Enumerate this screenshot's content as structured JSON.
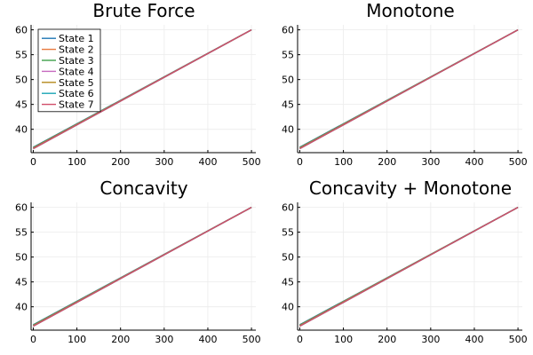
{
  "colors": {
    "background": "#ffffff",
    "grid": "#ececec",
    "axis": "#000000",
    "series": [
      "#1f77b4",
      "#e8793e",
      "#3ea04a",
      "#c76bc0",
      "#b5891c",
      "#1aa5b5",
      "#d14d6a"
    ]
  },
  "chart_data": [
    {
      "type": "line",
      "title": "Brute Force",
      "xlabel": "",
      "ylabel": "",
      "xlim": [
        -5,
        510
      ],
      "ylim": [
        35.3,
        61
      ],
      "xticks": [
        0,
        100,
        200,
        300,
        400,
        500
      ],
      "yticks": [
        40,
        45,
        50,
        55,
        60
      ],
      "grid": true,
      "legend": "top-left",
      "series": [
        {
          "name": "State 1",
          "x": [
            0,
            500
          ],
          "y": [
            36.4,
            60.0
          ]
        },
        {
          "name": "State 2",
          "x": [
            0,
            500
          ],
          "y": [
            36.3,
            60.0
          ]
        },
        {
          "name": "State 3",
          "x": [
            0,
            500
          ],
          "y": [
            36.3,
            60.0
          ]
        },
        {
          "name": "State 4",
          "x": [
            0,
            500
          ],
          "y": [
            36.2,
            60.0
          ]
        },
        {
          "name": "State 5",
          "x": [
            0,
            500
          ],
          "y": [
            36.2,
            60.0
          ]
        },
        {
          "name": "State 6",
          "x": [
            0,
            500
          ],
          "y": [
            36.1,
            60.0
          ]
        },
        {
          "name": "State 7",
          "x": [
            0,
            500
          ],
          "y": [
            36.1,
            60.0
          ]
        }
      ]
    },
    {
      "type": "line",
      "title": "Monotone",
      "xlabel": "",
      "ylabel": "",
      "xlim": [
        -5,
        510
      ],
      "ylim": [
        35.3,
        61
      ],
      "xticks": [
        0,
        100,
        200,
        300,
        400,
        500
      ],
      "yticks": [
        40,
        45,
        50,
        55,
        60
      ],
      "grid": true,
      "series": [
        {
          "x": [
            0,
            500
          ],
          "y": [
            36.4,
            60.0
          ]
        },
        {
          "x": [
            0,
            500
          ],
          "y": [
            36.3,
            60.0
          ]
        },
        {
          "x": [
            0,
            500
          ],
          "y": [
            36.3,
            60.0
          ]
        },
        {
          "x": [
            0,
            500
          ],
          "y": [
            36.2,
            60.0
          ]
        },
        {
          "x": [
            0,
            500
          ],
          "y": [
            36.2,
            60.0
          ]
        },
        {
          "x": [
            0,
            500
          ],
          "y": [
            36.1,
            60.0
          ]
        },
        {
          "x": [
            0,
            500
          ],
          "y": [
            36.1,
            60.0
          ]
        }
      ]
    },
    {
      "type": "line",
      "title": "Concavity",
      "xlabel": "",
      "ylabel": "",
      "xlim": [
        -5,
        510
      ],
      "ylim": [
        35.3,
        61
      ],
      "xticks": [
        0,
        100,
        200,
        300,
        400,
        500
      ],
      "yticks": [
        40,
        45,
        50,
        55,
        60
      ],
      "grid": true,
      "series": [
        {
          "x": [
            0,
            500
          ],
          "y": [
            36.4,
            60.0
          ]
        },
        {
          "x": [
            0,
            500
          ],
          "y": [
            36.3,
            60.0
          ]
        },
        {
          "x": [
            0,
            500
          ],
          "y": [
            36.3,
            60.0
          ]
        },
        {
          "x": [
            0,
            500
          ],
          "y": [
            36.2,
            60.0
          ]
        },
        {
          "x": [
            0,
            500
          ],
          "y": [
            36.2,
            60.0
          ]
        },
        {
          "x": [
            0,
            500
          ],
          "y": [
            36.1,
            60.0
          ]
        },
        {
          "x": [
            0,
            500
          ],
          "y": [
            36.1,
            60.0
          ]
        }
      ]
    },
    {
      "type": "line",
      "title": "Concavity + Monotone",
      "xlabel": "",
      "ylabel": "",
      "xlim": [
        -5,
        510
      ],
      "ylim": [
        35.3,
        61
      ],
      "xticks": [
        0,
        100,
        200,
        300,
        400,
        500
      ],
      "yticks": [
        40,
        45,
        50,
        55,
        60
      ],
      "grid": true,
      "series": [
        {
          "x": [
            0,
            500
          ],
          "y": [
            36.4,
            60.0
          ]
        },
        {
          "x": [
            0,
            500
          ],
          "y": [
            36.3,
            60.0
          ]
        },
        {
          "x": [
            0,
            500
          ],
          "y": [
            36.3,
            60.0
          ]
        },
        {
          "x": [
            0,
            500
          ],
          "y": [
            36.2,
            60.0
          ]
        },
        {
          "x": [
            0,
            500
          ],
          "y": [
            36.2,
            60.0
          ]
        },
        {
          "x": [
            0,
            500
          ],
          "y": [
            36.1,
            60.0
          ]
        },
        {
          "x": [
            0,
            500
          ],
          "y": [
            36.1,
            60.0
          ]
        }
      ]
    }
  ]
}
